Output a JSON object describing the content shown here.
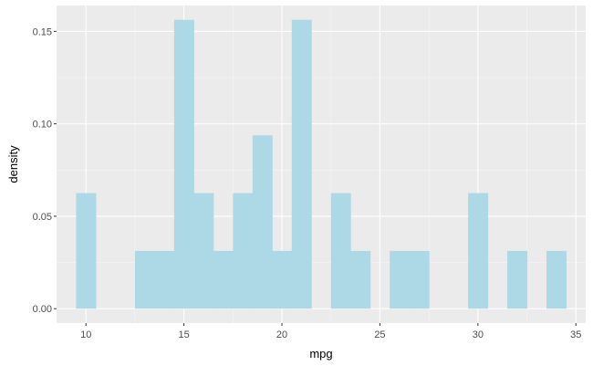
{
  "chart_data": {
    "type": "bar",
    "subtype": "histogram",
    "xlabel": "mpg",
    "ylabel": "density",
    "xlim": [
      8.5,
      35.5
    ],
    "ylim": [
      -0.0078,
      0.164
    ],
    "x_ticks": [
      10,
      15,
      20,
      25,
      30,
      35
    ],
    "y_ticks": [
      0.0,
      0.05,
      0.1,
      0.15
    ],
    "y_tick_labels": [
      "0.00",
      "0.05",
      "0.10",
      "0.15"
    ],
    "bin_width": 1,
    "fill_color": "#add8e6",
    "panel_background": "#ebebeb",
    "grid": true,
    "bins": [
      {
        "x": 10,
        "density": 0.0625
      },
      {
        "x": 13,
        "density": 0.03125
      },
      {
        "x": 14,
        "density": 0.03125
      },
      {
        "x": 15,
        "density": 0.15625
      },
      {
        "x": 16,
        "density": 0.0625
      },
      {
        "x": 17,
        "density": 0.03125
      },
      {
        "x": 18,
        "density": 0.0625
      },
      {
        "x": 19,
        "density": 0.09375
      },
      {
        "x": 20,
        "density": 0.03125
      },
      {
        "x": 21,
        "density": 0.15625
      },
      {
        "x": 23,
        "density": 0.0625
      },
      {
        "x": 24,
        "density": 0.03125
      },
      {
        "x": 26,
        "density": 0.03125
      },
      {
        "x": 27,
        "density": 0.03125
      },
      {
        "x": 30,
        "density": 0.0625
      },
      {
        "x": 32,
        "density": 0.03125
      },
      {
        "x": 34,
        "density": 0.03125
      }
    ]
  }
}
